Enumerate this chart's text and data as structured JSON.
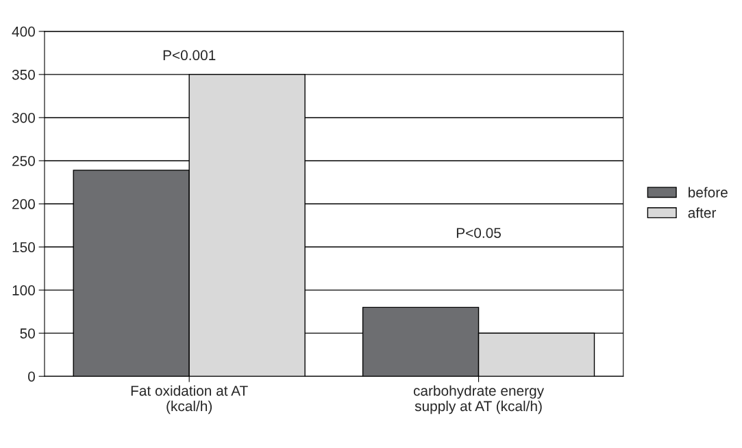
{
  "chart_data": {
    "type": "bar",
    "categories": [
      "Fat oxidation at AT\n(kcal/h)",
      "carbohydrate energy\nsupply at AT (kcal/h)"
    ],
    "series": [
      {
        "name": "before",
        "color": "#6d6e71",
        "values": [
          239,
          80
        ]
      },
      {
        "name": "after",
        "color": "#d9d9d9",
        "values": [
          350,
          50
        ]
      }
    ],
    "ylim": [
      0,
      400
    ],
    "yticks": [
      0,
      50,
      100,
      150,
      200,
      250,
      300,
      350,
      400
    ],
    "grid": "y",
    "legend": "right",
    "annotations": [
      "P<0.001",
      "P<0.05"
    ]
  }
}
